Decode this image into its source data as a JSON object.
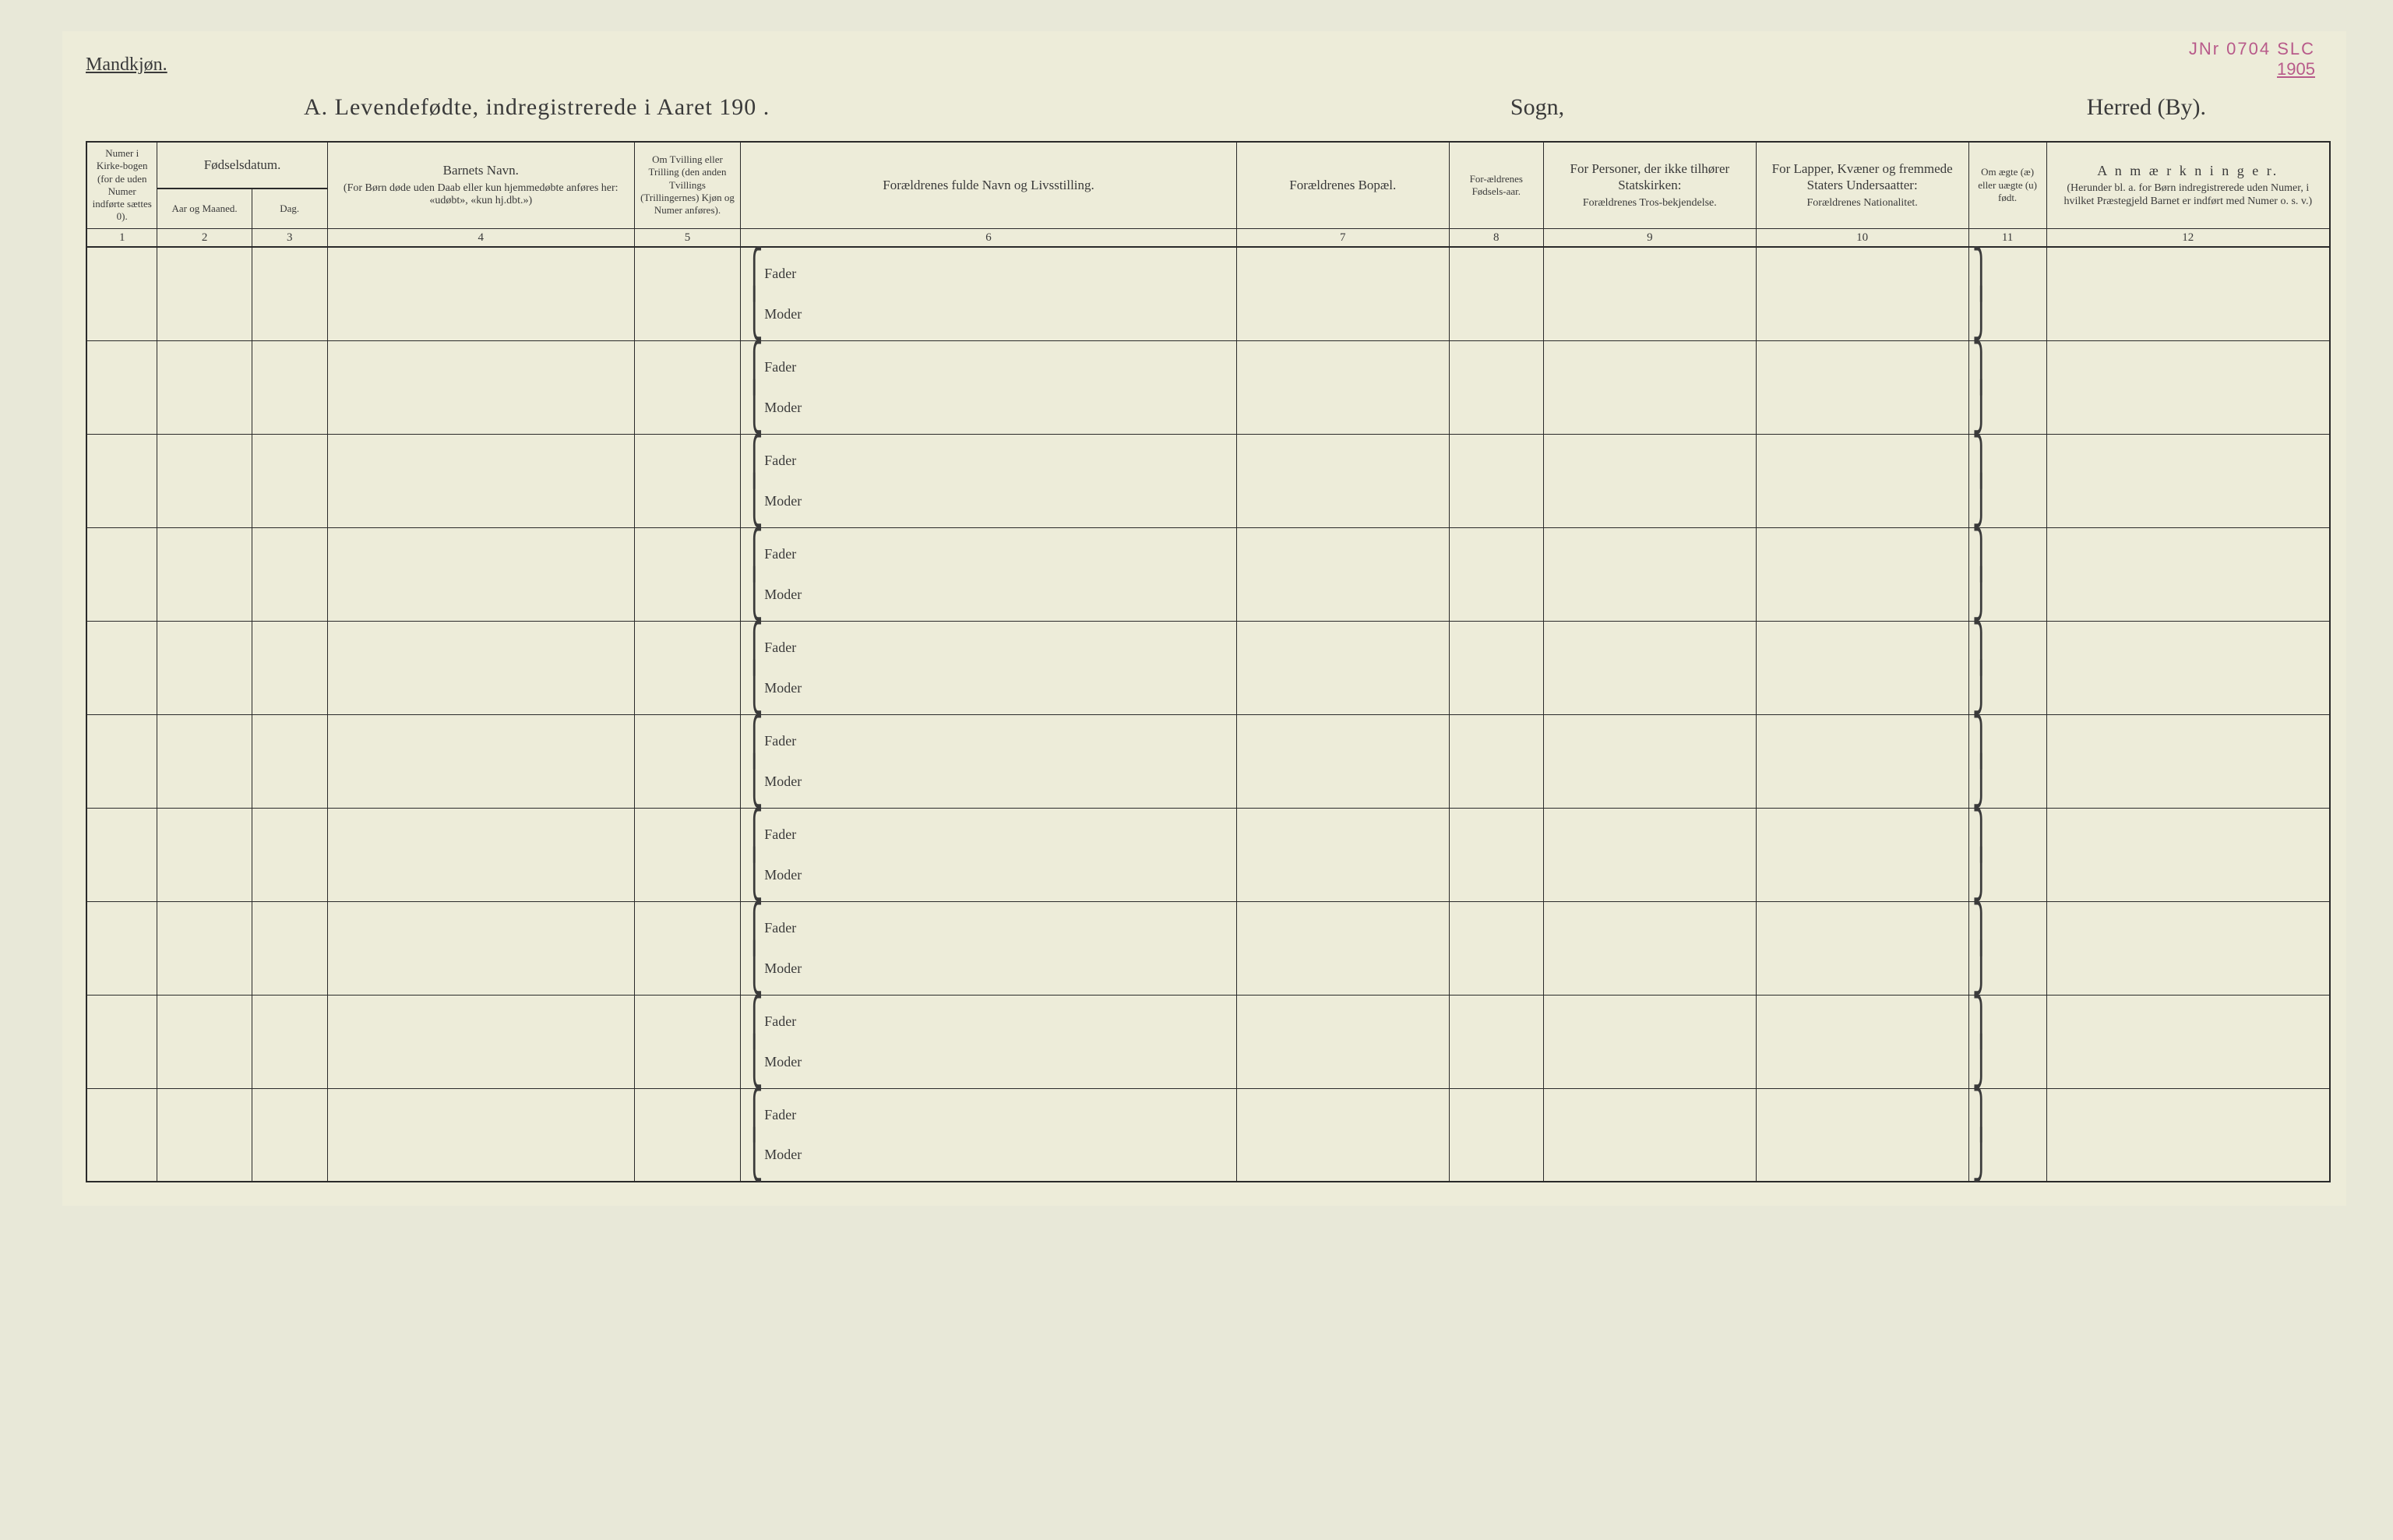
{
  "stamp": {
    "line1": "JNr 0704 SLC",
    "line2": "1905"
  },
  "gender_label": "Mandkjøn.",
  "title": {
    "main": "A.  Levendefødte, indregistrerede i Aaret 190  .",
    "sogn": "Sogn,",
    "herred": "Herred (By)."
  },
  "columns": [
    {
      "num": "1",
      "header": "Numer i Kirke-bogen (for de uden Numer indførte sættes 0)."
    },
    {
      "num": "2",
      "header_group": "Fødselsdatum.",
      "header": "Aar og Maaned."
    },
    {
      "num": "3",
      "header": "Dag."
    },
    {
      "num": "4",
      "header_title": "Barnets Navn.",
      "header_sub": "(For Børn døde uden Daab eller kun hjemmedøbte anføres her: «udøbt», «kun hj.dbt.»)"
    },
    {
      "num": "5",
      "header": "Om Tvilling eller Trilling (den anden Tvillings (Trillingernes) Kjøn og Numer anføres)."
    },
    {
      "num": "6",
      "header": "Forældrenes fulde Navn og Livsstilling."
    },
    {
      "num": "7",
      "header": "Forældrenes Bopæl."
    },
    {
      "num": "8",
      "header": "For-ældrenes Fødsels-aar."
    },
    {
      "num": "9",
      "header_title": "For Personer, der ikke tilhører Statskirken:",
      "header_sub": "Forældrenes Tros-bekjendelse."
    },
    {
      "num": "10",
      "header_title": "For Lapper, Kvæner og fremmede Staters Undersaatter:",
      "header_sub": "Forældrenes Nationalitet."
    },
    {
      "num": "11",
      "header": "Om ægte (æ) eller uægte (u) født."
    },
    {
      "num": "12",
      "header_title": "A n m æ r k n i n g e r.",
      "header_sub": "(Herunder bl. a. for Børn indregistrerede uden Numer, i hvilket Præstegjeld Barnet er indført med Numer o. s. v.)"
    }
  ],
  "row_labels": {
    "father": "Fader",
    "mother": "Moder"
  },
  "num_rows": 10,
  "colors": {
    "page_bg": "#edecd9",
    "rule": "#2a2a2a",
    "text": "#3a3a3a",
    "stamp": "#b85a8a"
  }
}
